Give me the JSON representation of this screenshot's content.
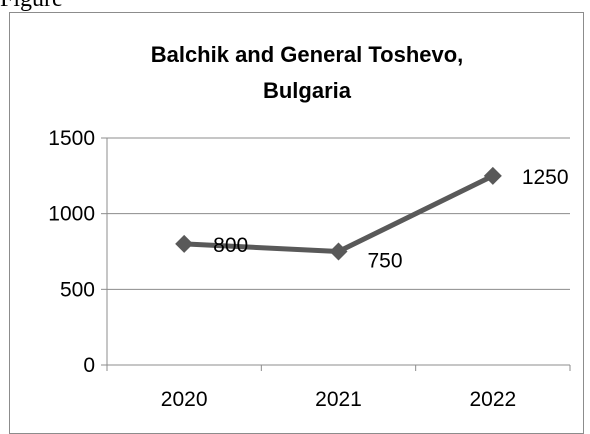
{
  "page": {
    "above_text": "Figure"
  },
  "chart_data": {
    "type": "line",
    "title_lines": [
      "Balchik and General Toshevo,",
      "Bulgaria"
    ],
    "xlabel": "",
    "ylabel": "",
    "categories": [
      "2020",
      "2021",
      "2022"
    ],
    "series": [
      {
        "values": [
          800,
          750,
          1250
        ],
        "data_labels": [
          "800",
          "750",
          "1250"
        ],
        "color": "#595959",
        "marker": "diamond"
      }
    ],
    "ylim": [
      0,
      1500
    ],
    "yticks": [
      0,
      500,
      1000,
      1500
    ],
    "ytick_labels": [
      "0",
      "500",
      "1000",
      "1500"
    ],
    "grid": "horizontal",
    "legend": "none"
  }
}
